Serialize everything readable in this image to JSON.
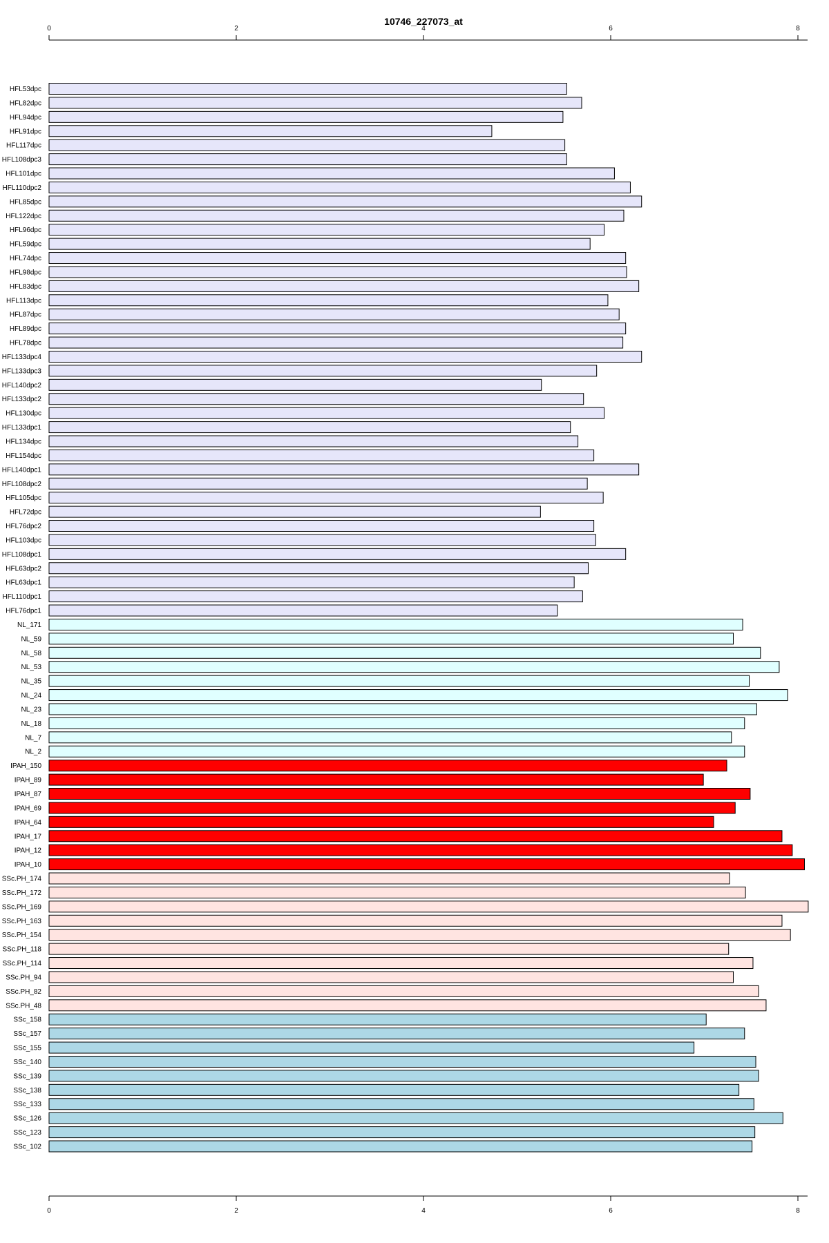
{
  "chart_data": {
    "type": "bar",
    "orientation": "horizontal",
    "title": "10746_227073_at",
    "xlabel": "",
    "ylabel": "",
    "xlim": [
      0,
      8
    ],
    "ticks": [
      0,
      2,
      4,
      6,
      8
    ],
    "tick_labels": [
      "0",
      "2",
      "4",
      "6",
      "8"
    ],
    "axes_position": "top-and-bottom",
    "grid": false,
    "colors": {
      "HFL": "#e6e6fa",
      "NL": "#e0ffff",
      "IPAH": "#ff0000",
      "SSc.PH": "#ffe4e1",
      "SSc": "#add8e6"
    },
    "categories": [
      "HFL53dpc",
      "HFL82dpc",
      "HFL94dpc",
      "HFL91dpc",
      "HFL117dpc",
      "HFL108dpc3",
      "HFL101dpc",
      "HFL110dpc2",
      "HFL85dpc",
      "HFL122dpc",
      "HFL96dpc",
      "HFL59dpc",
      "HFL74dpc",
      "HFL98dpc",
      "HFL83dpc",
      "HFL113dpc",
      "HFL87dpc",
      "HFL89dpc",
      "HFL78dpc",
      "HFL133dpc4",
      "HFL133dpc3",
      "HFL140dpc2",
      "HFL133dpc2",
      "HFL130dpc",
      "HFL133dpc1",
      "HFL134dpc",
      "HFL154dpc",
      "HFL140dpc1",
      "HFL108dpc2",
      "HFL105dpc",
      "HFL72dpc",
      "HFL76dpc2",
      "HFL103dpc",
      "HFL108dpc1",
      "HFL63dpc2",
      "HFL63dpc1",
      "HFL110dpc1",
      "HFL76dpc1",
      "NL_171",
      "NL_59",
      "NL_58",
      "NL_53",
      "NL_35",
      "NL_24",
      "NL_23",
      "NL_18",
      "NL_7",
      "NL_2",
      "IPAH_150",
      "IPAH_89",
      "IPAH_87",
      "IPAH_69",
      "IPAH_64",
      "IPAH_17",
      "IPAH_12",
      "IPAH_10",
      "SSc.PH_174",
      "SSc.PH_172",
      "SSc.PH_169",
      "SSc.PH_163",
      "SSc.PH_154",
      "SSc.PH_118",
      "SSc.PH_114",
      "SSc.PH_94",
      "SSc.PH_82",
      "SSc.PH_48",
      "SSc_158",
      "SSc_157",
      "SSc_155",
      "SSc_140",
      "SSc_139",
      "SSc_138",
      "SSc_133",
      "SSc_126",
      "SSc_123",
      "SSc_102"
    ],
    "groups": [
      "HFL",
      "HFL",
      "HFL",
      "HFL",
      "HFL",
      "HFL",
      "HFL",
      "HFL",
      "HFL",
      "HFL",
      "HFL",
      "HFL",
      "HFL",
      "HFL",
      "HFL",
      "HFL",
      "HFL",
      "HFL",
      "HFL",
      "HFL",
      "HFL",
      "HFL",
      "HFL",
      "HFL",
      "HFL",
      "HFL",
      "HFL",
      "HFL",
      "HFL",
      "HFL",
      "HFL",
      "HFL",
      "HFL",
      "HFL",
      "HFL",
      "HFL",
      "HFL",
      "HFL",
      "NL",
      "NL",
      "NL",
      "NL",
      "NL",
      "NL",
      "NL",
      "NL",
      "NL",
      "NL",
      "IPAH",
      "IPAH",
      "IPAH",
      "IPAH",
      "IPAH",
      "IPAH",
      "IPAH",
      "IPAH",
      "SSc.PH",
      "SSc.PH",
      "SSc.PH",
      "SSc.PH",
      "SSc.PH",
      "SSc.PH",
      "SSc.PH",
      "SSc.PH",
      "SSc.PH",
      "SSc.PH",
      "SSc",
      "SSc",
      "SSc",
      "SSc",
      "SSc",
      "SSc",
      "SSc",
      "SSc",
      "SSc",
      "SSc"
    ],
    "values": [
      5.53,
      5.69,
      5.49,
      4.73,
      5.51,
      5.53,
      6.04,
      6.21,
      6.33,
      6.14,
      5.93,
      5.78,
      6.16,
      6.17,
      6.3,
      5.97,
      6.09,
      6.16,
      6.13,
      6.33,
      5.85,
      5.26,
      5.71,
      5.93,
      5.57,
      5.65,
      5.82,
      6.3,
      5.75,
      5.92,
      5.25,
      5.82,
      5.84,
      6.16,
      5.76,
      5.61,
      5.7,
      5.43,
      7.41,
      7.31,
      7.6,
      7.8,
      7.48,
      7.89,
      7.56,
      7.43,
      7.29,
      7.43,
      7.24,
      6.99,
      7.49,
      7.33,
      7.1,
      7.83,
      7.94,
      8.07,
      7.27,
      7.44,
      8.11,
      7.83,
      7.92,
      7.26,
      7.52,
      7.31,
      7.58,
      7.66,
      7.02,
      7.43,
      6.89,
      7.55,
      7.58,
      7.37,
      7.53,
      7.84,
      7.54,
      7.51
    ]
  }
}
